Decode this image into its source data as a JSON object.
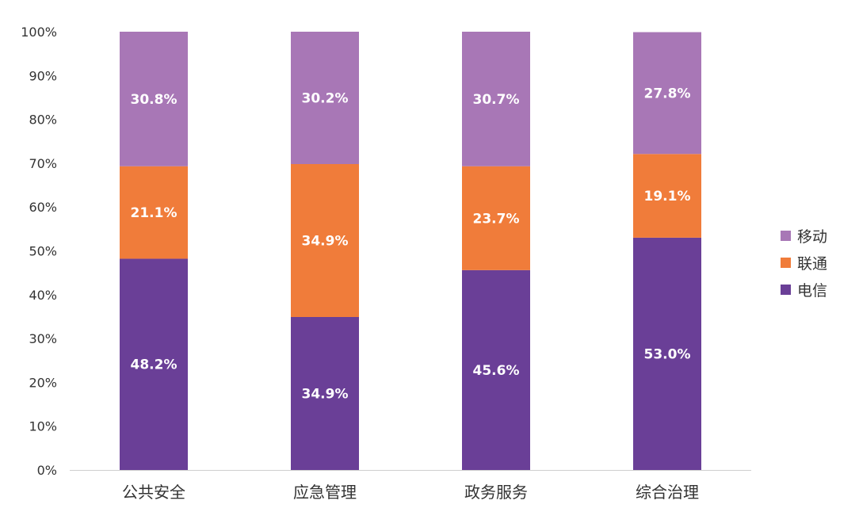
{
  "chart_data": {
    "type": "bar",
    "stacked": true,
    "categories": [
      "公共安全",
      "应急管理",
      "政务服务",
      "综合治理"
    ],
    "series": [
      {
        "name": "电信",
        "color": "#6A3F97",
        "values": [
          48.2,
          34.9,
          45.6,
          53.0
        ],
        "labels": [
          "48.2%",
          "34.9%",
          "45.6%",
          "53.0%"
        ]
      },
      {
        "name": "联通",
        "color": "#F07C3A",
        "values": [
          21.1,
          34.9,
          23.7,
          19.1
        ],
        "labels": [
          "21.1%",
          "34.9%",
          "23.7%",
          "19.1%"
        ]
      },
      {
        "name": "移动",
        "color": "#A877B6",
        "values": [
          30.8,
          30.2,
          30.7,
          27.8
        ],
        "labels": [
          "30.8%",
          "30.2%",
          "30.7%",
          "27.8%"
        ]
      }
    ],
    "yticks": [
      "0%",
      "10%",
      "20%",
      "30%",
      "40%",
      "50%",
      "60%",
      "70%",
      "80%",
      "90%",
      "100%"
    ],
    "ylim": [
      0,
      100
    ],
    "legend_position": "right",
    "legend_order": [
      "移动",
      "联通",
      "电信"
    ],
    "grid": false
  }
}
